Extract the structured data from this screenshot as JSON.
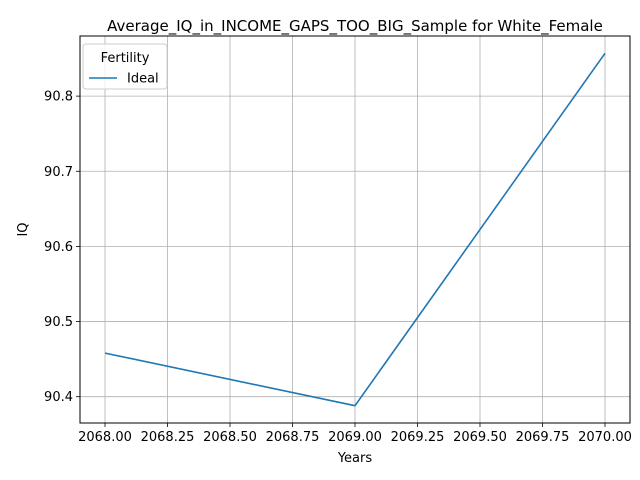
{
  "chart_data": {
    "type": "line",
    "title": "Average_IQ_in_INCOME_GAPS_TOO_BIG_Sample for White_Female",
    "xlabel": "Years",
    "ylabel": "IQ",
    "x": [
      2068,
      2069,
      2070
    ],
    "xlim": [
      2067.9,
      2070.1
    ],
    "ylim": [
      90.365,
      90.88
    ],
    "xticks": [
      2068.0,
      2068.25,
      2068.5,
      2068.75,
      2069.0,
      2069.25,
      2069.5,
      2069.75,
      2070.0
    ],
    "xtick_labels": [
      "2068.00",
      "2068.25",
      "2068.50",
      "2068.75",
      "2069.00",
      "2069.25",
      "2069.50",
      "2069.75",
      "2070.00"
    ],
    "yticks": [
      90.4,
      90.5,
      90.6,
      90.7,
      90.8
    ],
    "ytick_labels": [
      "90.4",
      "90.5",
      "90.6",
      "90.7",
      "90.8"
    ],
    "grid": true,
    "legend": {
      "title": "Fertility",
      "position": "top-left"
    },
    "series": [
      {
        "name": "Ideal",
        "color": "#1f77b4",
        "values": [
          90.458,
          90.388,
          90.857
        ]
      }
    ]
  }
}
